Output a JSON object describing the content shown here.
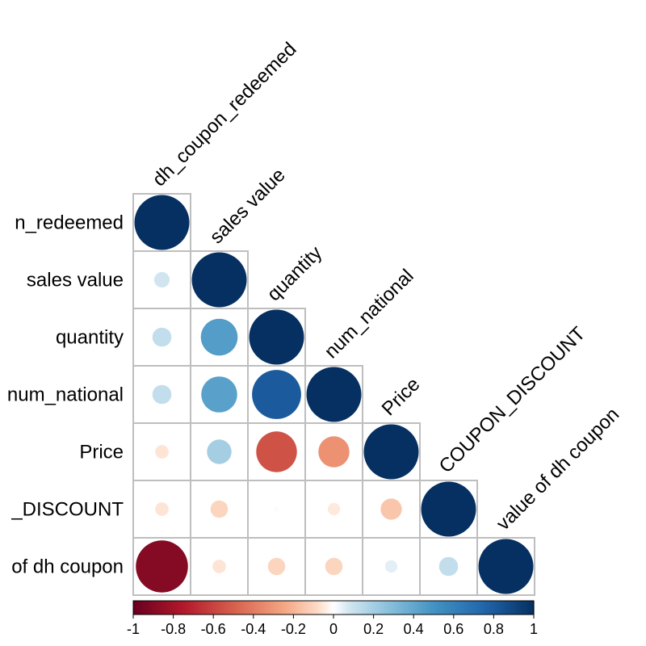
{
  "chart_data": {
    "type": "heatmap",
    "variables": [
      "dh_coupon_redeemed",
      "sales value",
      "quantity",
      "num_national",
      "Price",
      "COUPON_DISCOUNT",
      "value of dh coupon"
    ],
    "row_labels": [
      "n_redeemed",
      "sales value",
      "quantity",
      "num_national",
      "Price",
      "_DISCOUNT",
      "of dh coupon"
    ],
    "matrix_lower": [
      [
        1.0
      ],
      [
        0.08,
        1.0
      ],
      [
        0.12,
        0.45,
        1.0
      ],
      [
        0.12,
        0.43,
        0.8,
        1.0
      ],
      [
        -0.06,
        0.2,
        -0.55,
        -0.32,
        1.0
      ],
      [
        -0.06,
        -0.1,
        -0.01,
        -0.05,
        -0.15,
        1.0
      ],
      [
        -0.9,
        -0.06,
        -0.1,
        -0.1,
        0.05,
        0.12,
        1.0
      ]
    ],
    "shape": "circle",
    "layout": "lower-triangle",
    "colorbar": {
      "range": [
        -1,
        1
      ],
      "ticks": [
        "-1",
        "-0.8",
        "-0.6",
        "-0.4",
        "-0.2",
        "0",
        "0.2",
        "0.4",
        "0.6",
        "0.8",
        "1"
      ],
      "placement": "bottom"
    },
    "colors": {
      "negative_end": "#67001f",
      "zero": "#ffffff",
      "positive_end": "#053061",
      "grid": "#bebebe"
    }
  }
}
